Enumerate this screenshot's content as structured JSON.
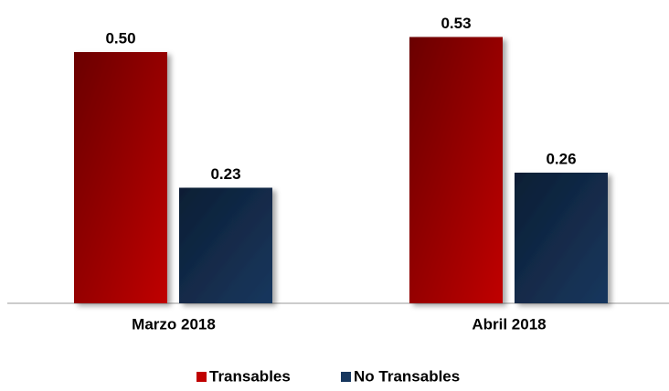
{
  "chart_data": {
    "type": "bar",
    "categories": [
      "Marzo 2018",
      "Abril 2018"
    ],
    "series": [
      {
        "name": "Transables",
        "color": "#c00000",
        "values": [
          0.5,
          0.53
        ],
        "value_labels": [
          "0.50",
          "0.53"
        ]
      },
      {
        "name": "No Transables",
        "color": "#17375e",
        "values": [
          0.23,
          0.26
        ],
        "value_labels": [
          "0.23",
          "0.26"
        ]
      }
    ]
  }
}
